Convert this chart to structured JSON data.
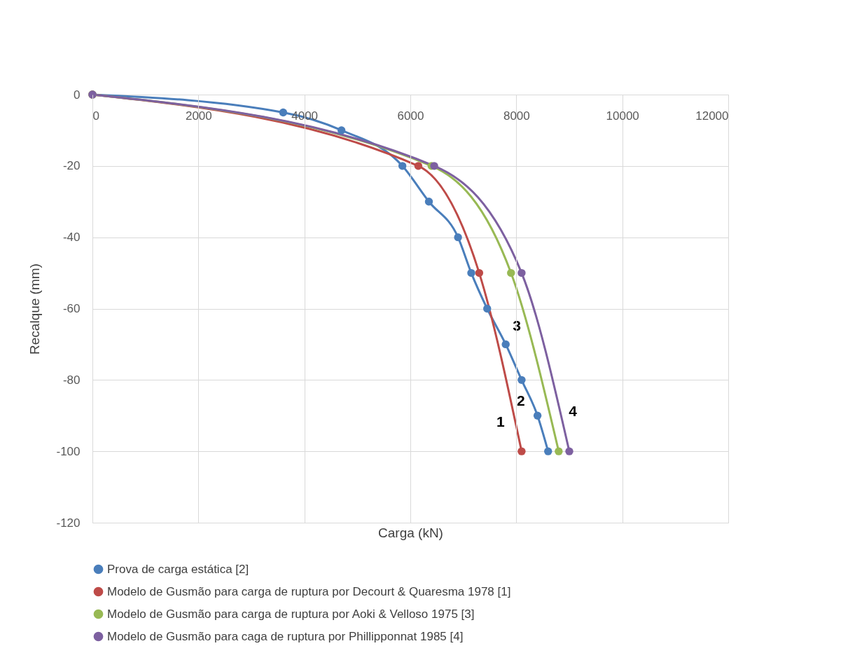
{
  "chart_data": {
    "type": "line",
    "xlabel": "Carga (kN)",
    "ylabel": "Recalque (mm)",
    "xlim": [
      0,
      12000
    ],
    "xticks": [
      0,
      2000,
      4000,
      6000,
      8000,
      10000,
      12000
    ],
    "ylim": [
      -120,
      0
    ],
    "yticks": [
      -120,
      -100,
      -80,
      -60,
      -40,
      -20,
      0
    ],
    "grid": true,
    "legend": "bottom",
    "marker": "circle",
    "line_style": "solid",
    "series": [
      {
        "name": "Prova de carga estática [2]",
        "color": "#4a7ebb",
        "x": [
          0,
          3600,
          4700,
          5850,
          6350,
          6900,
          7150,
          7450,
          7800,
          8100,
          8400,
          8600
        ],
        "values": [
          0,
          -5,
          -10,
          -20,
          -30,
          -40,
          -50,
          -60,
          -70,
          -80,
          -90,
          -100
        ]
      },
      {
        "name": "Modelo de  Gusmão para carga de ruptura por  Decourt & Quaresma 1978 [1]",
        "color": "#be4b48",
        "x": [
          0,
          6150,
          7300,
          8100
        ],
        "values": [
          0,
          -20,
          -50,
          -100
        ]
      },
      {
        "name": "Modelo de  Gusmão para carga de ruptura por Aoki & Velloso 1975 [3]",
        "color": "#98b954",
        "x": [
          0,
          6400,
          7900,
          8800
        ],
        "values": [
          0,
          -20,
          -50,
          -100
        ]
      },
      {
        "name": " Modelo de  Gusmão para caga de ruptura por Phillipponnat 1985 [4]",
        "color": "#7d60a0",
        "x": [
          0,
          6450,
          8100,
          9000
        ],
        "values": [
          0,
          -20,
          -50,
          -100
        ]
      }
    ],
    "annotations": [
      {
        "text": "1",
        "x": 8100,
        "y": -100
      },
      {
        "text": "2",
        "x": 8100,
        "y": -80
      },
      {
        "text": "3",
        "x": 8170,
        "y": -65
      },
      {
        "text": "4",
        "x": 9000,
        "y": -100
      }
    ]
  }
}
